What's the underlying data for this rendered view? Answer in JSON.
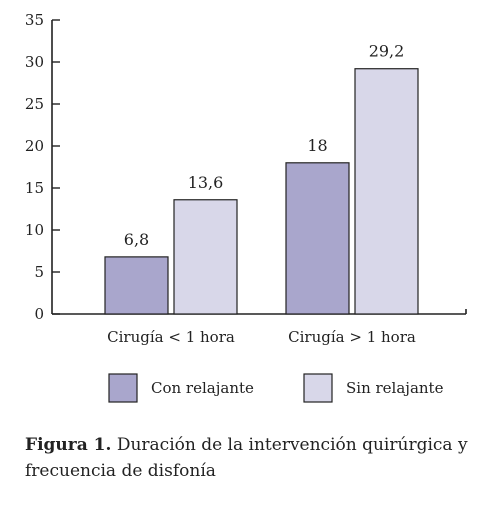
{
  "chart_data": {
    "type": "bar",
    "categories": [
      "Cirugía < 1 hora",
      "Cirugía > 1 hora"
    ],
    "series": [
      {
        "name": "Con relajante",
        "values": [
          6.8,
          18
        ],
        "labels": [
          "6,8",
          "18"
        ],
        "color": "#a9a6cc"
      },
      {
        "name": "Sin relajante",
        "values": [
          13.6,
          29.2
        ],
        "labels": [
          "13,6",
          "29,2"
        ],
        "color": "#d8d7e9"
      }
    ],
    "ylim": [
      0,
      35
    ],
    "yticks": [
      0,
      5,
      10,
      15,
      20,
      25,
      30,
      35
    ],
    "grid": false,
    "legend_position": "bottom"
  },
  "caption": {
    "label": "Figura 1.",
    "text": "Duración de la intervención quirúrgica y frecuencia de disfonía"
  }
}
